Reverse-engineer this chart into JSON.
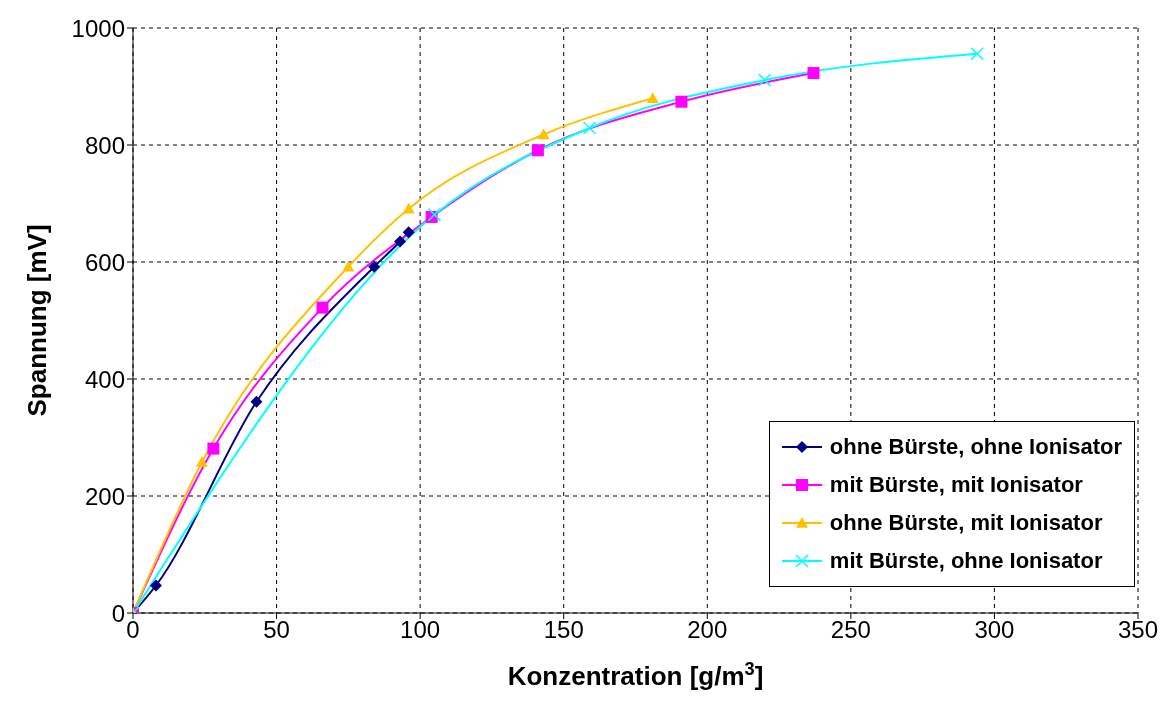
{
  "chart_data": {
    "type": "line",
    "xlabel": "Konzentration [g/m$^{3}$]",
    "ylabel": "Spannung [mV]",
    "xlim": [
      0,
      350
    ],
    "xticks": [
      0,
      50,
      100,
      150,
      200,
      250,
      300,
      350
    ],
    "ylim": [
      0,
      1000
    ],
    "yticks": [
      0,
      200,
      400,
      600,
      800,
      1000
    ],
    "grid": true,
    "legend": "bottom right",
    "line_style": "solid",
    "series": [
      {
        "name": "ohne Bürste, ohne Ionisator",
        "color": "#000080",
        "marker": "diamond",
        "x": [
          0,
          8,
          43,
          84,
          93,
          96
        ],
        "values": [
          0,
          47,
          361,
          592,
          635,
          651
        ]
      },
      {
        "name": "mit Bürste, mit Ionisator",
        "color": "#ff00ff",
        "marker": "square",
        "x": [
          0,
          28,
          66,
          104,
          141,
          191,
          237
        ],
        "values": [
          0,
          281,
          522,
          677,
          791,
          874,
          923
        ]
      },
      {
        "name": "ohne Bürste, mit Ionisator",
        "color": "#ffc000",
        "marker": "triangle",
        "x": [
          0,
          24,
          75,
          96,
          143,
          181
        ],
        "values": [
          0,
          258,
          592,
          691,
          818,
          880
        ]
      },
      {
        "name": "mit Bürste, ohne Ionisator",
        "color": "#00ffff",
        "marker": "cross",
        "x": [
          0,
          105,
          159,
          220,
          294
        ],
        "values": [
          0,
          681,
          829,
          911,
          956
        ]
      }
    ]
  }
}
